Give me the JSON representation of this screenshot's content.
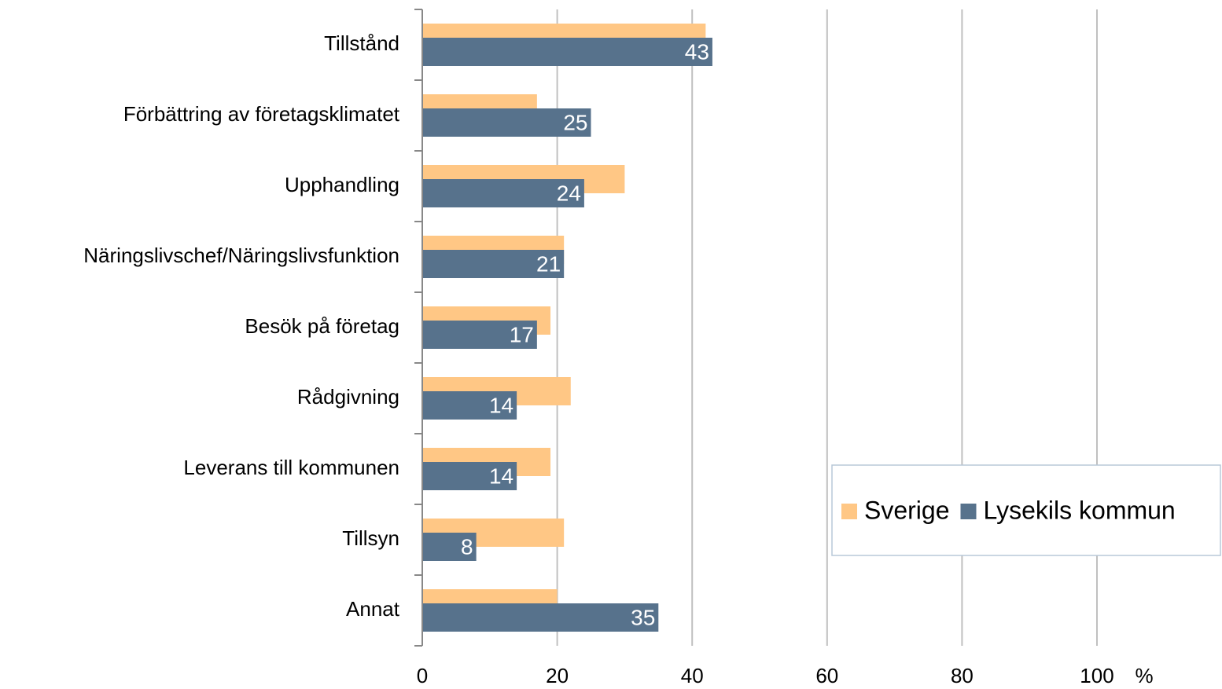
{
  "chart_data": {
    "type": "bar",
    "orientation": "horizontal",
    "categories": [
      "Tillstånd",
      "Förbättring av företagsklimatet",
      "Upphandling",
      "Näringslivschef/Näringslivsfunktion",
      "Besök på företag",
      "Rådgivning",
      "Leverans till kommunen",
      "Tillsyn",
      "Annat"
    ],
    "series": [
      {
        "name": "Sverige",
        "color": "#ffc785",
        "values": [
          42,
          17,
          30,
          21,
          19,
          22,
          19,
          21,
          20
        ]
      },
      {
        "name": "Lysekils kommun",
        "color": "#57728c",
        "values": [
          43,
          25,
          24,
          21,
          17,
          14,
          14,
          8,
          35
        ],
        "data_labels": true
      }
    ],
    "x_label": "%",
    "xlim": [
      0,
      100
    ],
    "xticks": [
      0,
      20,
      40,
      60,
      80,
      100
    ],
    "grid": true,
    "legend": "right"
  }
}
